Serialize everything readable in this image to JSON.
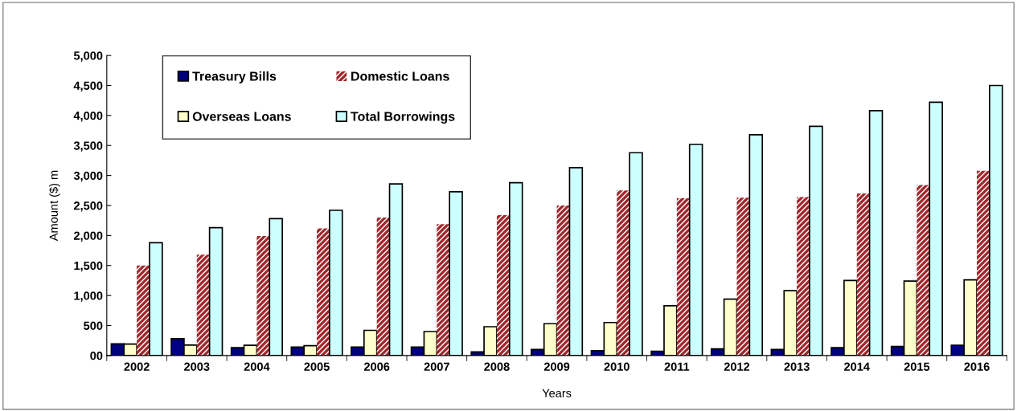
{
  "chart_data": {
    "type": "bar",
    "xlabel": "Years",
    "ylabel": "Amount ($) m",
    "categories": [
      "2002",
      "2003",
      "2004",
      "2005",
      "2006",
      "2007",
      "2008",
      "2009",
      "2010",
      "2011",
      "2012",
      "2013",
      "2014",
      "2015",
      "2016"
    ],
    "series": [
      {
        "name": "Treasury Bills",
        "color": "#000080",
        "values": [
          195,
          280,
          130,
          140,
          140,
          140,
          60,
          100,
          80,
          70,
          110,
          100,
          130,
          150,
          170
        ]
      },
      {
        "name": "Overseas Loans",
        "color": "#ffffcc",
        "values": [
          190,
          175,
          170,
          165,
          420,
          400,
          480,
          530,
          550,
          830,
          940,
          1080,
          1250,
          1240,
          1260
        ]
      },
      {
        "name": "Domestic Loans",
        "color": "#a0282d",
        "values": [
          1500,
          1680,
          1990,
          2120,
          2300,
          2190,
          2340,
          2500,
          2750,
          2620,
          2630,
          2640,
          2700,
          2840,
          3080
        ]
      },
      {
        "name": "Total Borrowings",
        "color": "#ccffff",
        "values": [
          1880,
          2130,
          2280,
          2420,
          2860,
          2730,
          2880,
          3130,
          3380,
          3520,
          3680,
          3820,
          4080,
          4220,
          4500
        ]
      }
    ],
    "ylim": [
      0,
      5000
    ],
    "yticks": [
      {
        "value": 0,
        "label": "00"
      },
      {
        "value": 500,
        "label": "500"
      },
      {
        "value": 1000,
        "label": "1,000"
      },
      {
        "value": 1500,
        "label": "1,500"
      },
      {
        "value": 2000,
        "label": "2,000"
      },
      {
        "value": 2500,
        "label": "2,500"
      },
      {
        "value": 3000,
        "label": "3,000"
      },
      {
        "value": 3500,
        "label": "3,500"
      },
      {
        "value": 4000,
        "label": "4,000"
      },
      {
        "value": 4500,
        "label": "4,500"
      },
      {
        "value": 5000,
        "label": "5,000"
      }
    ],
    "grid": false,
    "legend": "top left"
  }
}
